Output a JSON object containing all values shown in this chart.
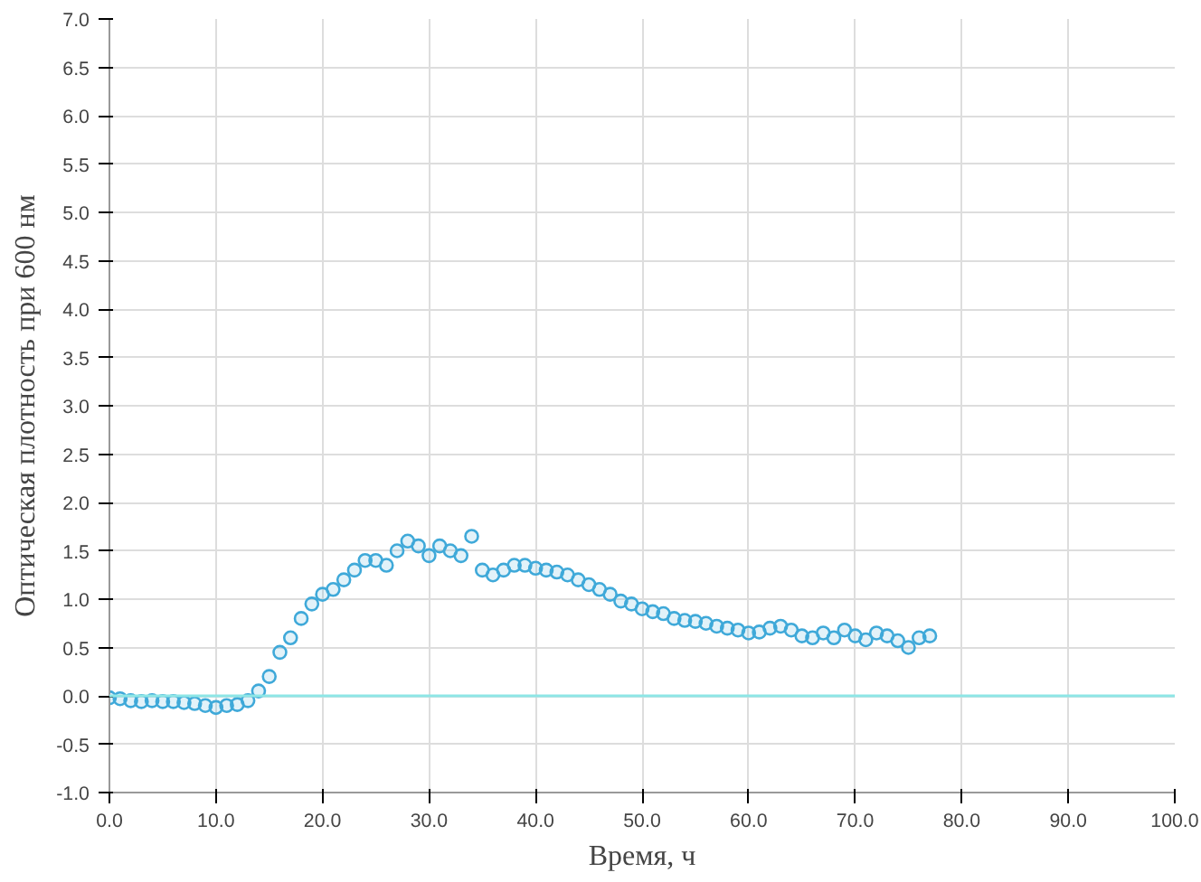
{
  "chart_data": {
    "type": "scatter",
    "xlabel": "Время, ч",
    "ylabel": "Оптическая плотность при 600 нм",
    "x": [
      0,
      1,
      2,
      3,
      4,
      5,
      6,
      7,
      8,
      9,
      10,
      11,
      12,
      13,
      14,
      15,
      16,
      17,
      18,
      19,
      20,
      21,
      22,
      23,
      24,
      25,
      26,
      27,
      28,
      29,
      30,
      31,
      32,
      33,
      34,
      35,
      36,
      37,
      38,
      39,
      40,
      41,
      42,
      43,
      44,
      45,
      46,
      47,
      48,
      49,
      50,
      51,
      52,
      53,
      54,
      55,
      56,
      57,
      58,
      59,
      60,
      61,
      62,
      63,
      64,
      65,
      66,
      67,
      68,
      69,
      70,
      71,
      72,
      73,
      74,
      75,
      76,
      77
    ],
    "series": [
      {
        "color": "#3fa9d9",
        "values": [
          -0.02,
          -0.03,
          -0.05,
          -0.06,
          -0.05,
          -0.06,
          -0.06,
          -0.07,
          -0.08,
          -0.1,
          -0.12,
          -0.1,
          -0.09,
          -0.05,
          0.05,
          0.2,
          0.45,
          0.6,
          0.8,
          0.95,
          1.05,
          1.1,
          1.2,
          1.3,
          1.4,
          1.4,
          1.35,
          1.5,
          1.6,
          1.55,
          1.45,
          1.55,
          1.5,
          1.45,
          1.65,
          1.3,
          1.25,
          1.3,
          1.35,
          1.35,
          1.32,
          1.3,
          1.28,
          1.25,
          1.2,
          1.15,
          1.1,
          1.05,
          0.98,
          0.95,
          0.9,
          0.87,
          0.85,
          0.8,
          0.78,
          0.77,
          0.75,
          0.72,
          0.7,
          0.68,
          0.65,
          0.66,
          0.7,
          0.72,
          0.68,
          0.62,
          0.6,
          0.65,
          0.6,
          0.68,
          0.62,
          0.58,
          0.65,
          0.62,
          0.57,
          0.5,
          0.6,
          0.62
        ]
      }
    ],
    "xlim": [
      0,
      100
    ],
    "xticks": [
      {
        "value": 0,
        "label": "0.0"
      },
      {
        "value": 10,
        "label": "10.0"
      },
      {
        "value": 20,
        "label": "20.0"
      },
      {
        "value": 30,
        "label": "30.0"
      },
      {
        "value": 40,
        "label": "40.0"
      },
      {
        "value": 50,
        "label": "50.0"
      },
      {
        "value": 60,
        "label": "60.0"
      },
      {
        "value": 70,
        "label": "70.0"
      },
      {
        "value": 80,
        "label": "80.0"
      },
      {
        "value": 90,
        "label": "90.0"
      },
      {
        "value": 100,
        "label": "100.0"
      }
    ],
    "ylim": [
      -1,
      7
    ],
    "yticks": [
      {
        "value": -1,
        "label": "-1.0"
      },
      {
        "value": -0.5,
        "label": "-0.5"
      },
      {
        "value": 0,
        "label": "0.0"
      },
      {
        "value": 0.5,
        "label": "0.5"
      },
      {
        "value": 1,
        "label": "1.0"
      },
      {
        "value": 1.5,
        "label": "1.5"
      },
      {
        "value": 2,
        "label": "2.0"
      },
      {
        "value": 2.5,
        "label": "2.5"
      },
      {
        "value": 3,
        "label": "3.0"
      },
      {
        "value": 3.5,
        "label": "3.5"
      },
      {
        "value": 4,
        "label": "4.0"
      },
      {
        "value": 4.5,
        "label": "4.5"
      },
      {
        "value": 5,
        "label": "5.0"
      },
      {
        "value": 5.5,
        "label": "5.5"
      },
      {
        "value": 6,
        "label": "6.0"
      },
      {
        "value": 6.5,
        "label": "6.5"
      },
      {
        "value": 7,
        "label": "7.0"
      }
    ],
    "ref_lines": [
      {
        "axis": "y",
        "value": 0,
        "color": "#8ee6e6"
      }
    ],
    "grid": true,
    "marker": "circle"
  }
}
